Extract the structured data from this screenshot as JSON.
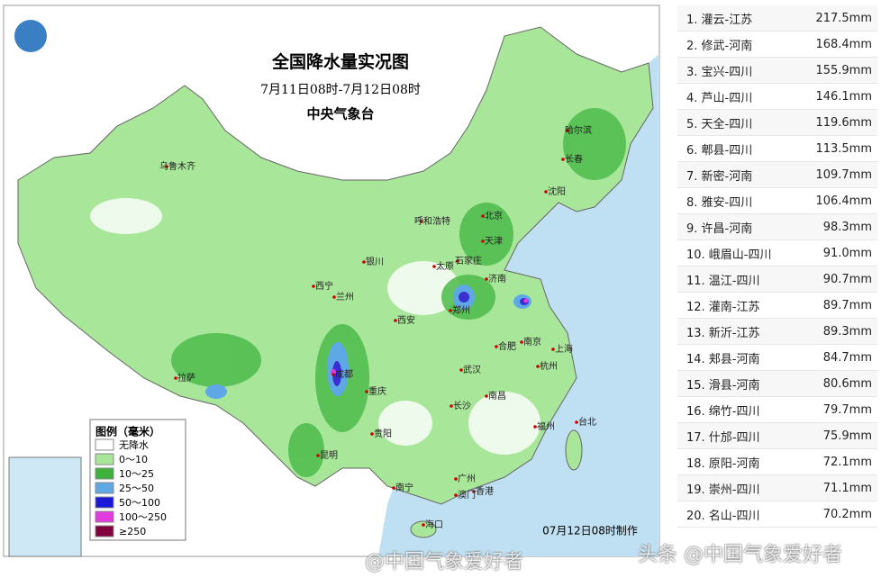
{
  "map": {
    "title": "全国降水量实况图",
    "period": "7月11日08时-7月12日08时",
    "issuer": "中央气象台",
    "legend": {
      "title": "图例（毫米）",
      "items": [
        "无降水",
        "0～10",
        "10～25",
        "25～50",
        "50～100",
        "100～250",
        "≥250"
      ]
    },
    "cities": [
      "乌鲁木齐",
      "哈尔滨",
      "长春",
      "沈阳",
      "北京",
      "天津",
      "呼和浩特",
      "石家庄",
      "太原",
      "银川",
      "济南",
      "西宁",
      "兰州",
      "郑州",
      "西安",
      "合肥",
      "南京",
      "上海",
      "成都",
      "武汉",
      "杭州",
      "拉萨",
      "重庆",
      "长沙",
      "南昌",
      "贵阳",
      "福州",
      "台北",
      "昆明",
      "南宁",
      "广州",
      "香港",
      "澳门",
      "海口"
    ],
    "footer": "07月12日08时制作"
  },
  "table": {
    "rows": [
      [
        "1. 灌云-江苏",
        "217.5mm"
      ],
      [
        "2. 修武-河南",
        "168.4mm"
      ],
      [
        "3. 宝兴-四川",
        "155.9mm"
      ],
      [
        "4. 芦山-四川",
        "146.1mm"
      ],
      [
        "5. 天全-四川",
        "119.6mm"
      ],
      [
        "6. 郫县-四川",
        "113.5mm"
      ],
      [
        "7. 新密-河南",
        "109.7mm"
      ],
      [
        "8. 雅安-四川",
        "106.4mm"
      ],
      [
        "9. 许昌-河南",
        "98.3mm"
      ],
      [
        "10. 峨眉山-四川",
        "91.0mm"
      ],
      [
        "11. 温江-四川",
        "90.7mm"
      ],
      [
        "12. 灌南-江苏",
        "89.7mm"
      ],
      [
        "13. 新沂-江苏",
        "89.3mm"
      ],
      [
        "14. 郏县-河南",
        "84.7mm"
      ],
      [
        "15. 滑县-河南",
        "80.6mm"
      ],
      [
        "16. 绵竹-四川",
        "79.7mm"
      ],
      [
        "17. 什邡-四川",
        "75.9mm"
      ],
      [
        "18. 原阳-河南",
        "72.1mm"
      ],
      [
        "19. 崇州-四川",
        "71.1mm"
      ],
      [
        "20. 名山-四川",
        "70.2mm"
      ]
    ]
  },
  "watermarks": [
    "@中国气象爱好者",
    "头条 @中国气象爱好者"
  ]
}
